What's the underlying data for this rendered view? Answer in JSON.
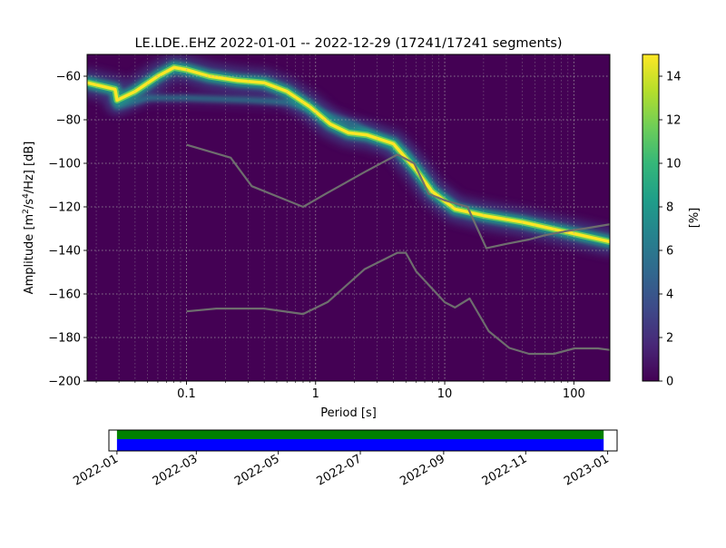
{
  "chart_data": [
    {
      "type": "heatmap",
      "title": "LE.LDE..EHZ   2022-01-01 -- 2022-12-29  (17241/17241 segments)",
      "xlabel": "Period [s]",
      "ylabel_main": "Amplitude [m",
      "ylabel_sup1": "2",
      "ylabel_mid": "/s",
      "ylabel_sup2": "4",
      "ylabel_end": "/Hz] [dB]",
      "x_scale": "log",
      "xlim": [
        0.017,
        190
      ],
      "ylim": [
        -200,
        -50
      ],
      "x_ticks": [
        {
          "value": 0.1,
          "label": "0.1"
        },
        {
          "value": 1,
          "label": "1"
        },
        {
          "value": 10,
          "label": "10"
        },
        {
          "value": 100,
          "label": "100"
        }
      ],
      "y_ticks": [
        -60,
        -80,
        -100,
        -120,
        -140,
        -160,
        -180,
        -200
      ],
      "grid": true,
      "density_path": [
        [
          0.017,
          -63
        ],
        [
          0.028,
          -66
        ],
        [
          0.029,
          -71
        ],
        [
          0.04,
          -67
        ],
        [
          0.06,
          -60
        ],
        [
          0.08,
          -56
        ],
        [
          0.1,
          -57
        ],
        [
          0.15,
          -60
        ],
        [
          0.25,
          -62
        ],
        [
          0.4,
          -63
        ],
        [
          0.6,
          -67
        ],
        [
          0.9,
          -74
        ],
        [
          1.3,
          -82
        ],
        [
          1.8,
          -86
        ],
        [
          2.5,
          -87
        ],
        [
          4,
          -91
        ],
        [
          6,
          -103
        ],
        [
          8,
          -113
        ],
        [
          12,
          -121
        ],
        [
          20,
          -124
        ],
        [
          40,
          -127
        ],
        [
          80,
          -131
        ],
        [
          190,
          -136
        ]
      ],
      "secondary_path": [
        [
          0.029,
          -74
        ],
        [
          0.05,
          -70
        ],
        [
          0.1,
          -70
        ],
        [
          0.3,
          -71
        ],
        [
          0.6,
          -72
        ],
        [
          1,
          -76
        ],
        [
          2,
          -82
        ],
        [
          3,
          -88
        ],
        [
          5,
          -95
        ],
        [
          8,
          -112
        ],
        [
          12,
          -120
        ]
      ],
      "reference_lines": [
        {
          "x": [
            0.1,
            0.22,
            0.32,
            0.8,
            1.2,
            2.4,
            4.3,
            5.8,
            7.5,
            10,
            15,
            21,
            30,
            45,
            60,
            90,
            120,
            190
          ],
          "y": [
            -91.5,
            -97.4,
            -110.5,
            -120,
            -114,
            -104,
            -96,
            -100,
            -114,
            -117,
            -120,
            -139,
            -137,
            -135,
            -133,
            -131,
            -130,
            -128
          ]
        },
        {
          "x": [
            0.1,
            0.17,
            0.4,
            0.8,
            1.24,
            2.4,
            4.3,
            5,
            6,
            10,
            12,
            15.6,
            21.9,
            31.6,
            45,
            70,
            101,
            154,
            190
          ],
          "y": [
            -168,
            -166.7,
            -166.7,
            -169.2,
            -163.7,
            -148.6,
            -141.1,
            -141.1,
            -149.6,
            -163.8,
            -166.2,
            -162.1,
            -177.1,
            -184.8,
            -187.5,
            -187.5,
            -185,
            -185,
            -185.7
          ]
        }
      ],
      "colorbar": {
        "label": "[%]",
        "min": 0,
        "max": 15,
        "ticks": [
          0,
          2,
          4,
          6,
          8,
          10,
          12,
          14
        ],
        "colormap": "viridis",
        "colors": [
          "#440154",
          "#482878",
          "#3e4a89",
          "#31688e",
          "#26828e",
          "#1f9e89",
          "#35b779",
          "#6ece58",
          "#b5de2b",
          "#fde725"
        ]
      },
      "colors": {
        "background": "#440154",
        "reference_line": "#6e6e6e",
        "grid": "#aaaaaa"
      }
    },
    {
      "type": "timeline",
      "x_ticks": [
        "2022-01",
        "2022-03",
        "2022-05",
        "2022-07",
        "2022-09",
        "2022-11",
        "2023-01"
      ],
      "x_tick_values": [
        "2022-01-01",
        "2022-03-01",
        "2022-05-01",
        "2022-07-01",
        "2022-09-01",
        "2022-11-01",
        "2023-01-01"
      ],
      "range_start": "2021-12-26",
      "range_end": "2023-01-08",
      "coverage": [
        {
          "start": "2022-01-01",
          "end": "2022-12-29"
        }
      ],
      "colors": {
        "upper": "#008000",
        "lower": "#0000ff"
      }
    }
  ]
}
